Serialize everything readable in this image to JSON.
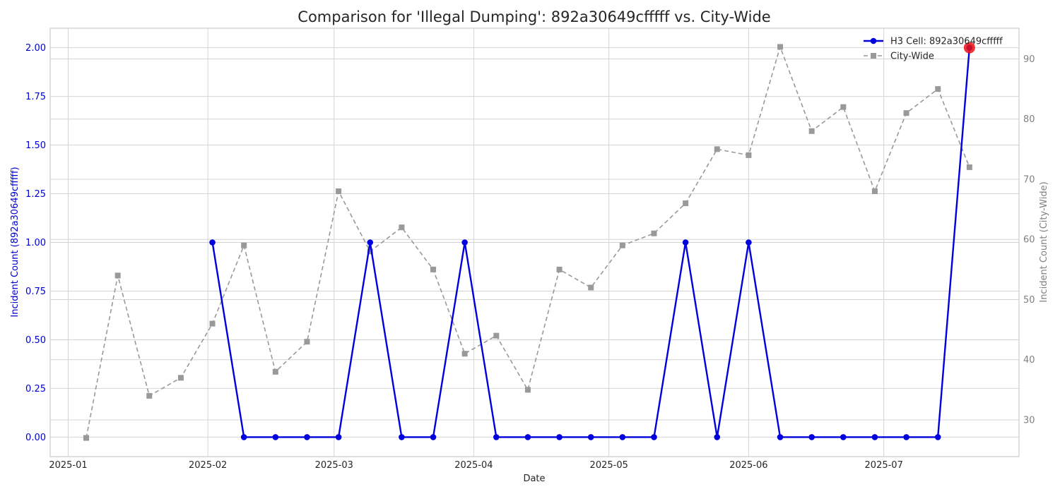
{
  "chart_data": {
    "type": "line",
    "title": "Comparison for 'Illegal Dumping': 892a30649cfffff vs. City-Wide",
    "xlabel": "Date",
    "ylabel_left": "Incident Count (892a30649cfffff)",
    "ylabel_right": "Incident Count (City-Wide)",
    "x_ticks": [
      "2025-01",
      "2025-02",
      "2025-03",
      "2025-04",
      "2025-05",
      "2025-06",
      "2025-07"
    ],
    "y_left_ticks": [
      "0.00",
      "0.25",
      "0.50",
      "0.75",
      "1.00",
      "1.25",
      "1.50",
      "1.75",
      "2.00"
    ],
    "y_right_ticks": [
      "30",
      "40",
      "50",
      "60",
      "70",
      "80",
      "90"
    ],
    "ylim_left": [
      -0.1,
      2.1
    ],
    "ylim_right": [
      23.9,
      95.1
    ],
    "xlim": [
      "2024-12-28",
      "2025-07-31"
    ],
    "grid": true,
    "legend_position": "top-right",
    "series": [
      {
        "name": "H3 Cell: 892a30649cfffff",
        "axis": "left",
        "color": "#0000dd",
        "style": "solid",
        "marker": "circle",
        "x": [
          "2025-02-02",
          "2025-02-09",
          "2025-02-16",
          "2025-02-23",
          "2025-03-02",
          "2025-03-09",
          "2025-03-16",
          "2025-03-23",
          "2025-03-30",
          "2025-04-06",
          "2025-04-13",
          "2025-04-20",
          "2025-04-27",
          "2025-05-04",
          "2025-05-11",
          "2025-05-18",
          "2025-05-25",
          "2025-06-01",
          "2025-06-08",
          "2025-06-15",
          "2025-06-22",
          "2025-06-29",
          "2025-07-06",
          "2025-07-13",
          "2025-07-20"
        ],
        "values": [
          1,
          0,
          0,
          0,
          0,
          1,
          0,
          0,
          1,
          0,
          0,
          0,
          0,
          0,
          0,
          1,
          0,
          1,
          0,
          0,
          0,
          0,
          0,
          0,
          2
        ]
      },
      {
        "name": "City-Wide",
        "axis": "right",
        "color": "#999999",
        "style": "dashed",
        "marker": "square",
        "x": [
          "2025-01-05",
          "2025-01-12",
          "2025-01-19",
          "2025-01-26",
          "2025-02-02",
          "2025-02-09",
          "2025-02-16",
          "2025-02-23",
          "2025-03-02",
          "2025-03-09",
          "2025-03-16",
          "2025-03-23",
          "2025-03-30",
          "2025-04-06",
          "2025-04-13",
          "2025-04-20",
          "2025-04-27",
          "2025-05-04",
          "2025-05-11",
          "2025-05-18",
          "2025-05-25",
          "2025-06-01",
          "2025-06-08",
          "2025-06-15",
          "2025-06-22",
          "2025-06-29",
          "2025-07-06",
          "2025-07-13",
          "2025-07-20"
        ],
        "values": [
          27,
          54,
          34,
          37,
          46,
          59,
          38,
          43,
          68,
          58,
          62,
          55,
          41,
          44,
          35,
          55,
          52,
          59,
          61,
          66,
          75,
          74,
          92,
          78,
          82,
          68,
          81,
          85,
          72
        ]
      }
    ],
    "highlight_point": {
      "series": "H3 Cell: 892a30649cfffff",
      "x": "2025-07-20",
      "value": 2,
      "color": "#ee1111"
    }
  }
}
